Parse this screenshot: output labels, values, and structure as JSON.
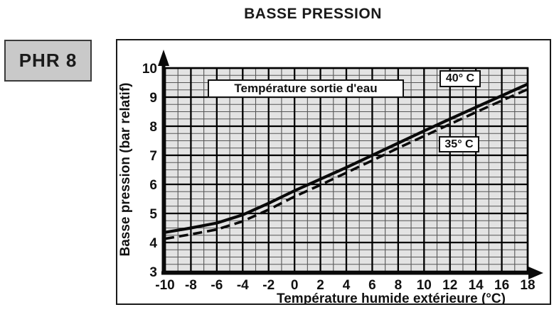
{
  "title": "BASSE PRESSION",
  "model_badge": "PHR 8",
  "colors": {
    "ink": "#0a0a0a",
    "grid_bg": "#e3e3e3",
    "grid_minor": "#565656",
    "grid_major": "#000000",
    "frame_bg": "#ffffff",
    "badge_bg": "#c9c9c9"
  },
  "chart_data": {
    "type": "line",
    "title": "BASSE PRESSION",
    "xlabel": "Température humide extérieure (°C)",
    "ylabel": "Basse pression (bar relatif)",
    "annotation": "Température sortie d'eau",
    "xlim": [
      -10,
      18
    ],
    "ylim": [
      3,
      10
    ],
    "xticks": [
      -10,
      -8,
      -6,
      -4,
      -2,
      0,
      2,
      4,
      6,
      8,
      10,
      12,
      14,
      16,
      18
    ],
    "yticks": [
      3,
      4,
      5,
      6,
      7,
      8,
      9,
      10
    ],
    "x_minor_step": 1,
    "x_major_step": 2,
    "y_minor_step": 0.25,
    "y_major_step": 1,
    "grid": true,
    "legend_position": "on-curve-boxes",
    "x": [
      -10,
      -8,
      -6,
      -4,
      -2,
      0,
      2,
      4,
      6,
      8,
      10,
      12,
      14,
      16,
      18
    ],
    "series": [
      {
        "name": "40° C",
        "style": "solid",
        "values": [
          4.35,
          4.5,
          4.67,
          4.95,
          5.35,
          5.78,
          6.18,
          6.58,
          7.0,
          7.42,
          7.84,
          8.25,
          8.65,
          9.05,
          9.45
        ]
      },
      {
        "name": "35° C",
        "style": "dashed",
        "values": [
          4.13,
          4.28,
          4.45,
          4.73,
          5.13,
          5.58,
          5.98,
          6.4,
          6.82,
          7.25,
          7.66,
          8.07,
          8.48,
          8.88,
          9.27
        ]
      }
    ]
  }
}
